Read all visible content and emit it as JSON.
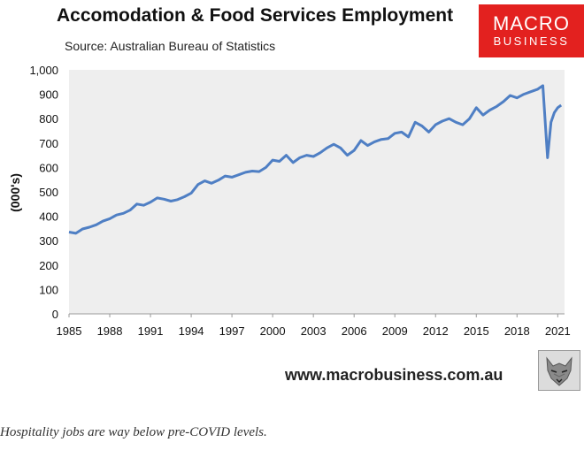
{
  "header": {
    "title": "Accomodation & Food Services Employment",
    "source": "Source: Australian Bureau of Statistics"
  },
  "logo": {
    "line1": "MACRO",
    "line2": "BUSINESS"
  },
  "footer": {
    "website": "www.macrobusiness.com.au",
    "caption": "Hospitality jobs are way below pre-COVID levels."
  },
  "colors": {
    "line": "#4f7fc4",
    "plot_bg": "#eeeeee",
    "logo_bg": "#e3211f"
  },
  "icons": {
    "logo_mark": "wolf-head-icon"
  },
  "chart_data": {
    "type": "line",
    "title": "Accomodation & Food Services Employment",
    "xlabel": "",
    "ylabel": "(000's)",
    "xlim": [
      1985,
      2021.5
    ],
    "ylim": [
      0,
      1000
    ],
    "grid": false,
    "x_ticks": [
      1985,
      1988,
      1991,
      1994,
      1997,
      2000,
      2003,
      2006,
      2009,
      2012,
      2015,
      2018,
      2021
    ],
    "y_ticks": [
      0,
      100,
      200,
      300,
      400,
      500,
      600,
      700,
      800,
      900,
      1000
    ],
    "series": [
      {
        "name": "Employment",
        "x": [
          1985.0,
          1985.5,
          1986.0,
          1986.5,
          1987.0,
          1987.5,
          1988.0,
          1988.5,
          1989.0,
          1989.5,
          1990.0,
          1990.5,
          1991.0,
          1991.5,
          1992.0,
          1992.5,
          1993.0,
          1993.5,
          1994.0,
          1994.5,
          1995.0,
          1995.5,
          1996.0,
          1996.5,
          1997.0,
          1997.5,
          1998.0,
          1998.5,
          1999.0,
          1999.5,
          2000.0,
          2000.5,
          2001.0,
          2001.5,
          2002.0,
          2002.5,
          2003.0,
          2003.5,
          2004.0,
          2004.5,
          2005.0,
          2005.5,
          2006.0,
          2006.5,
          2007.0,
          2007.5,
          2008.0,
          2008.5,
          2009.0,
          2009.5,
          2010.0,
          2010.5,
          2011.0,
          2011.5,
          2012.0,
          2012.5,
          2013.0,
          2013.5,
          2014.0,
          2014.5,
          2015.0,
          2015.5,
          2016.0,
          2016.5,
          2017.0,
          2017.5,
          2018.0,
          2018.5,
          2019.0,
          2019.5,
          2019.9,
          2020.25,
          2020.5,
          2020.75,
          2021.0,
          2021.25
        ],
        "values": [
          335,
          330,
          348,
          355,
          365,
          380,
          390,
          405,
          412,
          425,
          450,
          445,
          458,
          475,
          470,
          462,
          468,
          480,
          495,
          530,
          545,
          535,
          548,
          565,
          560,
          570,
          580,
          585,
          583,
          600,
          630,
          625,
          650,
          620,
          640,
          650,
          645,
          660,
          680,
          695,
          680,
          650,
          670,
          710,
          690,
          705,
          715,
          718,
          740,
          745,
          725,
          785,
          770,
          745,
          775,
          790,
          800,
          785,
          775,
          800,
          845,
          815,
          835,
          850,
          870,
          895,
          885,
          900,
          910,
          920,
          935,
          640,
          785,
          825,
          845,
          855
        ]
      }
    ]
  }
}
